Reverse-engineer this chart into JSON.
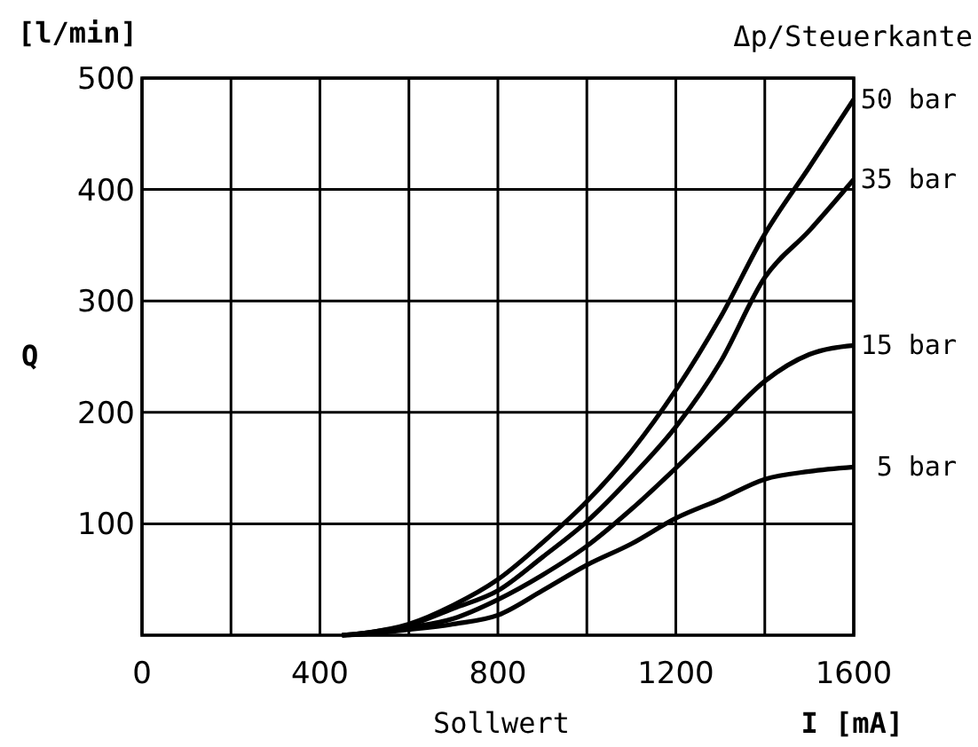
{
  "chart_data": {
    "type": "line",
    "legend_title": "Δp/Steuerkante",
    "ylabel": "Q",
    "xlabel": "Sollwert",
    "annotations": [
      "[l/min]",
      "I [mA]"
    ],
    "xlim": [
      0,
      1600
    ],
    "ylim": [
      0,
      500
    ],
    "xticks": [
      0,
      {
        "value": 200,
        "label": null
      },
      400,
      {
        "value": 600,
        "label": null
      },
      800,
      {
        "value": 1000,
        "label": null
      },
      1200,
      {
        "value": 1400,
        "label": null
      },
      1600
    ],
    "yticks": [
      100,
      200,
      300,
      400,
      500
    ],
    "grid": true,
    "x": [
      450,
      500,
      600,
      700,
      800,
      900,
      1000,
      1100,
      1200,
      1300,
      1400,
      1500,
      1600
    ],
    "series": [
      {
        "name": "50 bar",
        "color": "#000000",
        "values": [
          0,
          2,
          10,
          27,
          50,
          83,
          120,
          165,
          220,
          285,
          360,
          420,
          481
        ]
      },
      {
        "name": "35 bar",
        "color": "#000000",
        "values": [
          0,
          2,
          9,
          24,
          40,
          70,
          102,
          142,
          187,
          245,
          321,
          363,
          409
        ]
      },
      {
        "name": "15 bar",
        "color": "#000000",
        "values": [
          0,
          1,
          7,
          15,
          32,
          54,
          80,
          113,
          150,
          189,
          228,
          252,
          260
        ]
      },
      {
        "name": "5 bar",
        "color": "#000000",
        "values": [
          0,
          1,
          5,
          10,
          18,
          40,
          63,
          82,
          105,
          122,
          140,
          147,
          151
        ]
      }
    ]
  }
}
